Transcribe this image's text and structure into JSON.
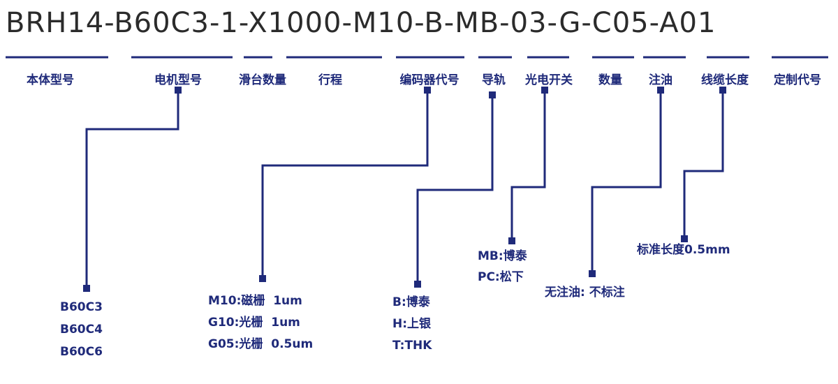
{
  "model_code": "BRH14-B60C3-1-X1000-M10-B-MB-03-G-C05-A01",
  "color": "#1f2a7a",
  "fields": [
    {
      "label": "本体型号"
    },
    {
      "label": "电机型号",
      "options": [
        "B60C3",
        "B60C4",
        "B60C6"
      ]
    },
    {
      "label": "滑台数量"
    },
    {
      "label": "行程"
    },
    {
      "label": "编码器代号",
      "options": [
        "M10:磁栅  1um",
        "G10:光栅  1um",
        "G05:光栅  0.5um"
      ]
    },
    {
      "label": "导轨",
      "options": [
        "B:博泰",
        "H:上银",
        "T:THK"
      ]
    },
    {
      "label": "光电开关",
      "options": [
        "MB:博泰",
        "PC:松下"
      ]
    },
    {
      "label": "数量"
    },
    {
      "label": "注油",
      "options": [
        "无注油: 不标注"
      ]
    },
    {
      "label": "线缆长度",
      "options": [
        "标准长度0.5mm"
      ]
    },
    {
      "label": "定制代号"
    }
  ]
}
